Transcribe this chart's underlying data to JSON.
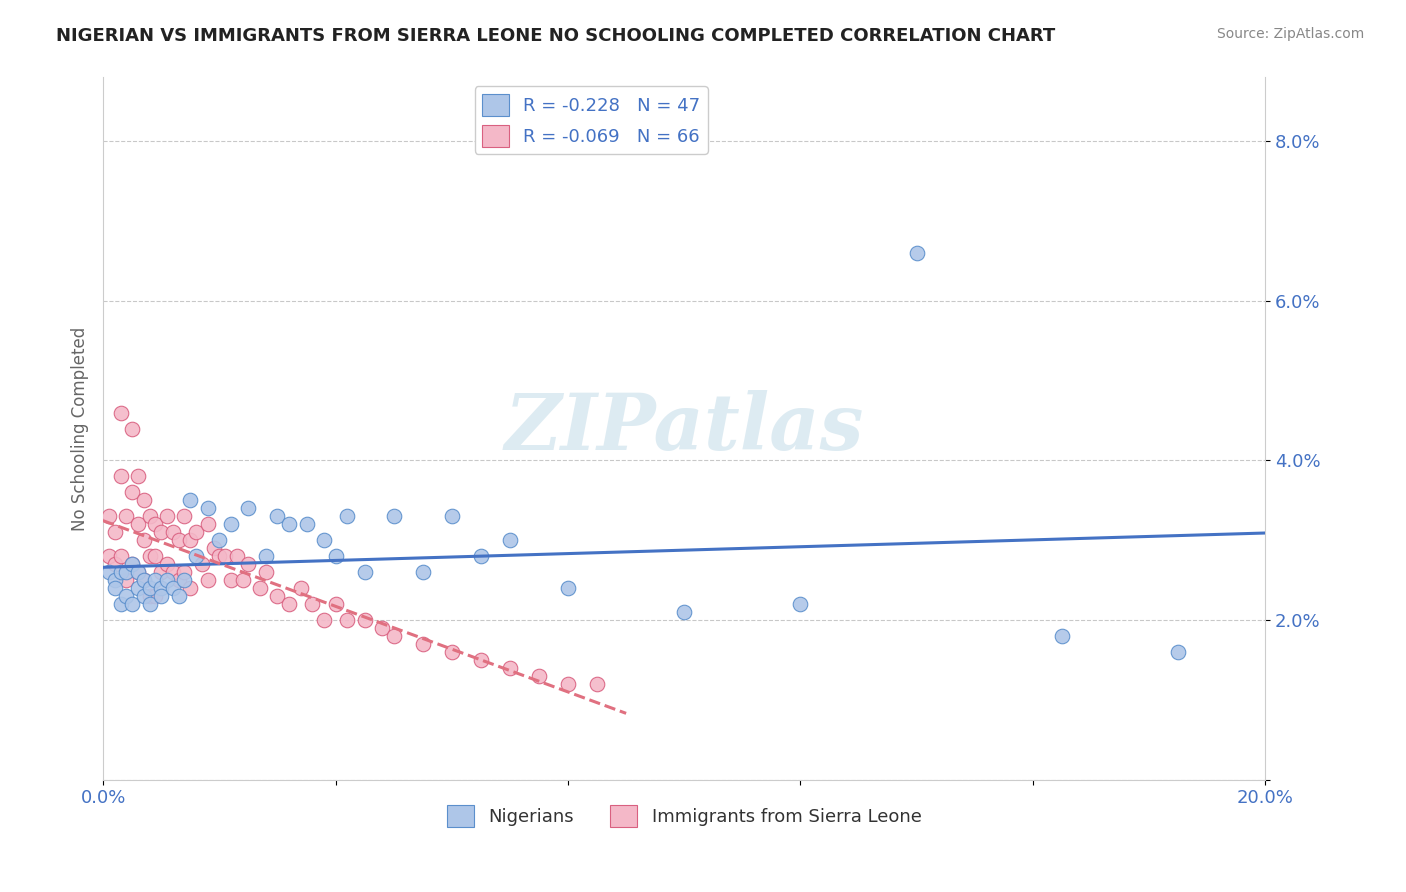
{
  "title": "NIGERIAN VS IMMIGRANTS FROM SIERRA LEONE NO SCHOOLING COMPLETED CORRELATION CHART",
  "source": "Source: ZipAtlas.com",
  "ylabel": "No Schooling Completed",
  "xlim": [
    0.0,
    0.2
  ],
  "ylim": [
    0.0,
    0.088
  ],
  "xticks": [
    0.0,
    0.04,
    0.08,
    0.12,
    0.16,
    0.2
  ],
  "xticklabels_left": "0.0%",
  "xticklabels_right": "20.0%",
  "yticks": [
    0.0,
    0.02,
    0.04,
    0.06,
    0.08
  ],
  "yticklabels": [
    "",
    "2.0%",
    "4.0%",
    "6.0%",
    "8.0%"
  ],
  "nigerian_R": -0.228,
  "nigerian_N": 47,
  "sierraleone_R": -0.069,
  "sierraleone_N": 66,
  "nigerian_color": "#aec6e8",
  "sierraleone_color": "#f4b8c8",
  "nigerian_edge_color": "#5b8fcc",
  "sierraleone_edge_color": "#d96080",
  "nigerian_line_color": "#4472c4",
  "sierraleone_line_color": "#e07080",
  "watermark": "ZIPatlas",
  "legend_label_1": "Nigerians",
  "legend_label_2": "Immigrants from Sierra Leone",
  "nigerian_x": [
    0.001,
    0.002,
    0.002,
    0.003,
    0.003,
    0.004,
    0.004,
    0.005,
    0.005,
    0.006,
    0.006,
    0.007,
    0.007,
    0.008,
    0.008,
    0.009,
    0.01,
    0.01,
    0.011,
    0.012,
    0.013,
    0.014,
    0.015,
    0.016,
    0.018,
    0.02,
    0.022,
    0.025,
    0.028,
    0.03,
    0.032,
    0.035,
    0.038,
    0.04,
    0.042,
    0.045,
    0.05,
    0.055,
    0.06,
    0.065,
    0.07,
    0.08,
    0.1,
    0.12,
    0.14,
    0.165,
    0.185
  ],
  "nigerian_y": [
    0.026,
    0.025,
    0.024,
    0.026,
    0.022,
    0.026,
    0.023,
    0.027,
    0.022,
    0.024,
    0.026,
    0.023,
    0.025,
    0.024,
    0.022,
    0.025,
    0.024,
    0.023,
    0.025,
    0.024,
    0.023,
    0.025,
    0.035,
    0.028,
    0.034,
    0.03,
    0.032,
    0.034,
    0.028,
    0.033,
    0.032,
    0.032,
    0.03,
    0.028,
    0.033,
    0.026,
    0.033,
    0.026,
    0.033,
    0.028,
    0.03,
    0.024,
    0.021,
    0.022,
    0.066,
    0.018,
    0.016
  ],
  "sierraleone_x": [
    0.001,
    0.001,
    0.002,
    0.002,
    0.003,
    0.003,
    0.003,
    0.004,
    0.004,
    0.005,
    0.005,
    0.005,
    0.006,
    0.006,
    0.006,
    0.007,
    0.007,
    0.007,
    0.008,
    0.008,
    0.008,
    0.009,
    0.009,
    0.009,
    0.01,
    0.01,
    0.011,
    0.011,
    0.012,
    0.012,
    0.013,
    0.013,
    0.014,
    0.014,
    0.015,
    0.015,
    0.016,
    0.017,
    0.018,
    0.018,
    0.019,
    0.02,
    0.021,
    0.022,
    0.023,
    0.024,
    0.025,
    0.027,
    0.028,
    0.03,
    0.032,
    0.034,
    0.036,
    0.038,
    0.04,
    0.042,
    0.045,
    0.048,
    0.05,
    0.055,
    0.06,
    0.065,
    0.07,
    0.075,
    0.08,
    0.085
  ],
  "sierraleone_y": [
    0.033,
    0.028,
    0.031,
    0.027,
    0.046,
    0.038,
    0.028,
    0.033,
    0.025,
    0.044,
    0.036,
    0.027,
    0.038,
    0.032,
    0.026,
    0.035,
    0.03,
    0.025,
    0.033,
    0.028,
    0.023,
    0.032,
    0.028,
    0.023,
    0.031,
    0.026,
    0.033,
    0.027,
    0.031,
    0.026,
    0.03,
    0.025,
    0.033,
    0.026,
    0.03,
    0.024,
    0.031,
    0.027,
    0.032,
    0.025,
    0.029,
    0.028,
    0.028,
    0.025,
    0.028,
    0.025,
    0.027,
    0.024,
    0.026,
    0.023,
    0.022,
    0.024,
    0.022,
    0.02,
    0.022,
    0.02,
    0.02,
    0.019,
    0.018,
    0.017,
    0.016,
    0.015,
    0.014,
    0.013,
    0.012,
    0.012
  ]
}
